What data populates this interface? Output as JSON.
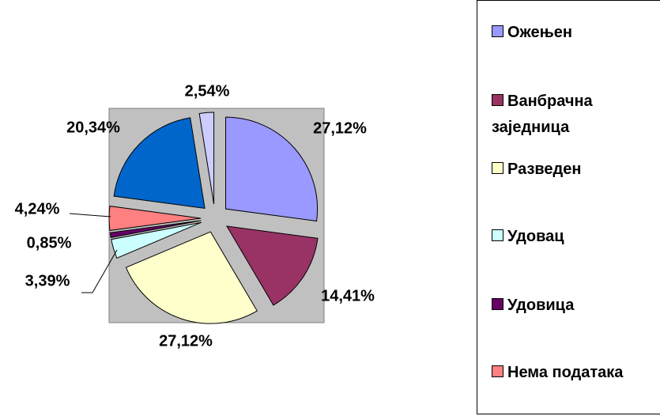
{
  "chart_data": {
    "type": "pie",
    "categories": [
      "Ожењен",
      "Ванбрачна заједница",
      "Разведен",
      "Удовац",
      "Удовица",
      "Нема података",
      null,
      null
    ],
    "values": [
      27.12,
      14.41,
      27.12,
      3.39,
      0.85,
      4.24,
      20.34,
      2.54
    ],
    "value_labels": [
      "27,12%",
      "14,41%",
      "27,12%",
      "3,39%",
      "0,85%",
      "4,24%",
      "20,34%",
      "2,54%"
    ],
    "colors": [
      "#9999ff",
      "#993366",
      "#ffffcc",
      "#ccffff",
      "#660066",
      "#ff8080",
      "#0066cc",
      "#ccccff"
    ],
    "legend": "right"
  }
}
